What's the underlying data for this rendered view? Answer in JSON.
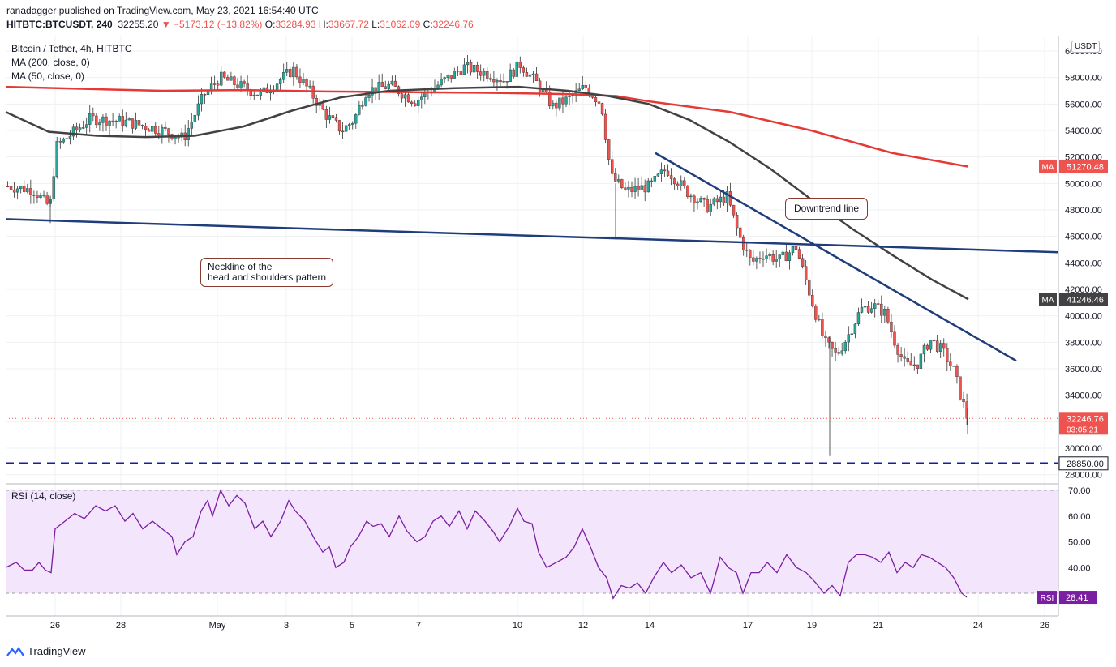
{
  "header": {
    "line1": "ranadagger published on TradingView.com, May 23, 2021 16:54:40 UTC",
    "symbol": "HITBTC:BTCUSDT, 240",
    "last": "32255.20",
    "arrow": "▼",
    "change": "−5173.12 (−13.82%)",
    "o_label": "O:",
    "o": "33284.93",
    "h_label": "H:",
    "h": "33667.72",
    "l_label": "L:",
    "l": "31062.09",
    "c_label": "C:",
    "c": "32246.76"
  },
  "legend": {
    "title": "Bitcoin / Tether, 4h, HITBTC",
    "ma200": "MA (200, close, 0)",
    "ma50": "MA (50, close, 0)"
  },
  "rsi_label": "RSI (14, close)",
  "currency_button": "USDT",
  "brand": "TradingView",
  "annotations": {
    "neckline_1": "Neckline of the",
    "neckline_2": "head and shoulders pattern",
    "downtrend": "Downtrend line"
  },
  "colors": {
    "up": "#26a69a",
    "down": "#ef5350",
    "ma200": "#e53935",
    "ma50": "#424242",
    "trendline": "#1f3d7a",
    "support": "#1a1aa8",
    "rsi": "#7b1fa2",
    "rsi_band": "#f3e5fb"
  },
  "chart_data": [
    {
      "type": "candlestick",
      "x_ticks": [
        "26",
        "28",
        "May",
        "3",
        "5",
        "7",
        "10",
        "12",
        "14",
        "17",
        "19",
        "21",
        "24",
        "26"
      ],
      "y_ticks": [
        "28000.00",
        "30000.00",
        "32000.00",
        "34000.00",
        "36000.00",
        "38000.00",
        "40000.00",
        "42000.00",
        "44000.00",
        "46000.00",
        "48000.00",
        "50000.00",
        "52000.00",
        "54000.00",
        "56000.00",
        "58000.00",
        "60000.00"
      ],
      "ylim": [
        27800,
        61700
      ],
      "price_labels": [
        {
          "label": "MA",
          "value": 51270.48,
          "text": "51270.48"
        },
        {
          "label": "MA",
          "value": 41246.46,
          "text": "41246.46"
        },
        {
          "label": "",
          "value": 32246.76,
          "text": "32246.76",
          "sub": "03:05:21"
        },
        {
          "label": "",
          "value": 28850.0,
          "text": "28850.00"
        }
      ],
      "support_level": 28850,
      "ma200_points": [
        [
          7,
          57300
        ],
        [
          100,
          57150
        ],
        [
          200,
          57000
        ],
        [
          300,
          57050
        ],
        [
          400,
          56950
        ],
        [
          500,
          56900
        ],
        [
          600,
          56850
        ],
        [
          700,
          56750
        ],
        [
          760,
          56600
        ],
        [
          800,
          56200
        ],
        [
          900,
          55400
        ],
        [
          1000,
          54000
        ],
        [
          1100,
          52300
        ],
        [
          1194,
          51270
        ]
      ],
      "ma50_points": [
        [
          7,
          55400
        ],
        [
          60,
          53900
        ],
        [
          120,
          53600
        ],
        [
          180,
          53500
        ],
        [
          240,
          53600
        ],
        [
          300,
          54300
        ],
        [
          360,
          55500
        ],
        [
          420,
          56500
        ],
        [
          480,
          57000
        ],
        [
          560,
          57200
        ],
        [
          640,
          57300
        ],
        [
          700,
          57000
        ],
        [
          750,
          56600
        ],
        [
          800,
          56000
        ],
        [
          850,
          54800
        ],
        [
          900,
          53100
        ],
        [
          950,
          51100
        ],
        [
          1000,
          48800
        ],
        [
          1050,
          46600
        ],
        [
          1100,
          44600
        ],
        [
          1150,
          42700
        ],
        [
          1194,
          41250
        ]
      ],
      "neckline": [
        [
          7,
          47300
        ],
        [
          1305,
          44800
        ]
      ],
      "downtrend_line": [
        [
          808,
          52300
        ],
        [
          1253,
          36600
        ]
      ]
    },
    {
      "type": "line",
      "title": "RSI (14, close)",
      "y_ticks": [
        "40.00",
        "50.00",
        "60.00",
        "70.00"
      ],
      "ylim": [
        24.5,
        71
      ],
      "band": [
        30,
        70
      ],
      "last_label": {
        "label": "RSI",
        "value": 28.41,
        "text": "28.41"
      },
      "points": [
        [
          7,
          40
        ],
        [
          20,
          42
        ],
        [
          30,
          39
        ],
        [
          40,
          39
        ],
        [
          48,
          42
        ],
        [
          56,
          39
        ],
        [
          63,
          38
        ],
        [
          68,
          55
        ],
        [
          80,
          58
        ],
        [
          92,
          61
        ],
        [
          104,
          59
        ],
        [
          118,
          64
        ],
        [
          130,
          62
        ],
        [
          142,
          64
        ],
        [
          154,
          58
        ],
        [
          164,
          61
        ],
        [
          176,
          55
        ],
        [
          188,
          58
        ],
        [
          200,
          55
        ],
        [
          212,
          52
        ],
        [
          218,
          45
        ],
        [
          228,
          50
        ],
        [
          238,
          52
        ],
        [
          248,
          62
        ],
        [
          256,
          66
        ],
        [
          262,
          60
        ],
        [
          272,
          70
        ],
        [
          282,
          64
        ],
        [
          292,
          68
        ],
        [
          302,
          65
        ],
        [
          314,
          55
        ],
        [
          324,
          58
        ],
        [
          334,
          52
        ],
        [
          346,
          58
        ],
        [
          356,
          66
        ],
        [
          364,
          62
        ],
        [
          376,
          58
        ],
        [
          388,
          51
        ],
        [
          398,
          46
        ],
        [
          406,
          48
        ],
        [
          414,
          40
        ],
        [
          424,
          42
        ],
        [
          432,
          48
        ],
        [
          442,
          52
        ],
        [
          452,
          58
        ],
        [
          460,
          56
        ],
        [
          470,
          57
        ],
        [
          480,
          52
        ],
        [
          492,
          60
        ],
        [
          502,
          54
        ],
        [
          514,
          50
        ],
        [
          524,
          52
        ],
        [
          534,
          58
        ],
        [
          544,
          60
        ],
        [
          554,
          56
        ],
        [
          566,
          62
        ],
        [
          576,
          55
        ],
        [
          586,
          62
        ],
        [
          598,
          58
        ],
        [
          608,
          54
        ],
        [
          616,
          50
        ],
        [
          628,
          56
        ],
        [
          638,
          63
        ],
        [
          646,
          58
        ],
        [
          656,
          57
        ],
        [
          664,
          46
        ],
        [
          674,
          40
        ],
        [
          686,
          42
        ],
        [
          698,
          44
        ],
        [
          708,
          48
        ],
        [
          718,
          55
        ],
        [
          728,
          48
        ],
        [
          738,
          40
        ],
        [
          748,
          36
        ],
        [
          756,
          28
        ],
        [
          766,
          33
        ],
        [
          776,
          32
        ],
        [
          786,
          34
        ],
        [
          796,
          30
        ],
        [
          806,
          36
        ],
        [
          818,
          42
        ],
        [
          828,
          38
        ],
        [
          840,
          41
        ],
        [
          852,
          36
        ],
        [
          864,
          38
        ],
        [
          876,
          30
        ],
        [
          888,
          44
        ],
        [
          898,
          40
        ],
        [
          908,
          38
        ],
        [
          916,
          30
        ],
        [
          926,
          38
        ],
        [
          936,
          38
        ],
        [
          946,
          42
        ],
        [
          958,
          38
        ],
        [
          970,
          45
        ],
        [
          982,
          40
        ],
        [
          994,
          38
        ],
        [
          1006,
          34
        ],
        [
          1016,
          30
        ],
        [
          1026,
          33
        ],
        [
          1036,
          29
        ],
        [
          1046,
          42
        ],
        [
          1056,
          45
        ],
        [
          1066,
          45
        ],
        [
          1076,
          44
        ],
        [
          1086,
          42
        ],
        [
          1096,
          46
        ],
        [
          1106,
          38
        ],
        [
          1116,
          42
        ],
        [
          1126,
          40
        ],
        [
          1136,
          45
        ],
        [
          1146,
          44
        ],
        [
          1156,
          42
        ],
        [
          1166,
          40
        ],
        [
          1176,
          36
        ],
        [
          1186,
          30
        ],
        [
          1192,
          28.41
        ]
      ]
    }
  ]
}
